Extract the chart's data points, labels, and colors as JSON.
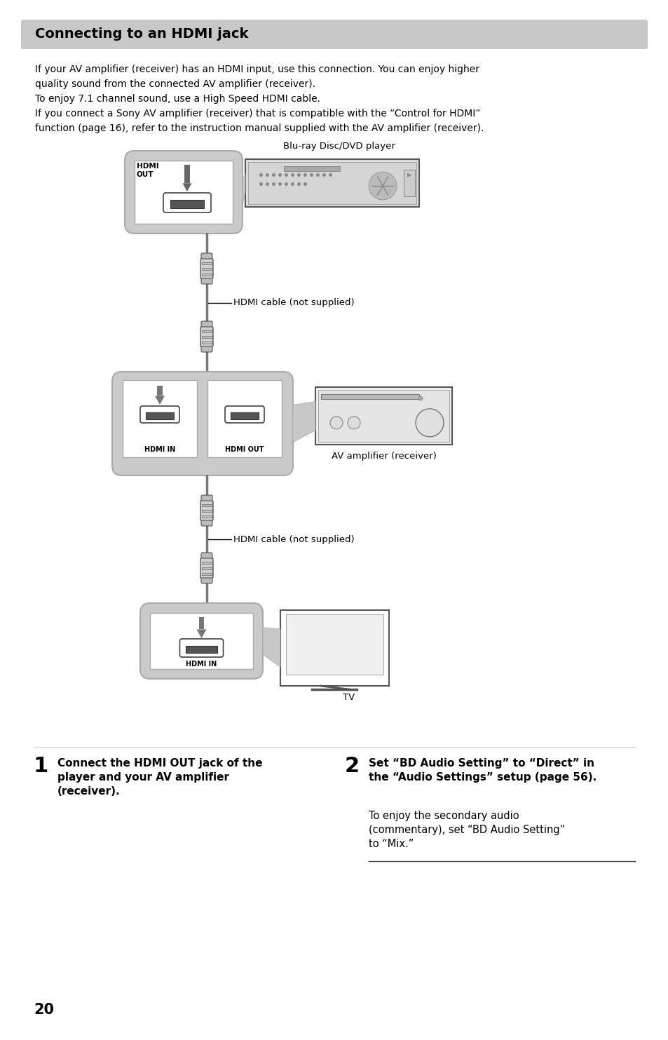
{
  "title": "Connecting to an HDMI jack",
  "title_bg": "#c8c8c8",
  "page_bg": "#ffffff",
  "page_number": "20",
  "body_text_lines": [
    "If your AV amplifier (receiver) has an HDMI input, use this connection. You can enjoy higher",
    "quality sound from the connected AV amplifier (receiver).",
    "To enjoy 7.1 channel sound, use a High Speed HDMI cable.",
    "If you connect a Sony AV amplifier (receiver) that is compatible with the “Control for HDMI”",
    "function (page 16), refer to the instruction manual supplied with the AV amplifier (receiver)."
  ],
  "label_blu_ray": "Blu-ray Disc/DVD player",
  "label_hdmi_cable_1": "HDMI cable (not supplied)",
  "label_av_amplifier": "AV amplifier (receiver)",
  "label_hdmi_cable_2": "HDMI cable (not supplied)",
  "label_tv": "TV",
  "step1_num": "1",
  "step1_bold": "Connect the HDMI OUT jack of the\nplayer and your AV amplifier\n(receiver).",
  "step2_num": "2",
  "step2_bold": "Set “BD Audio Setting” to “Direct” in\nthe “Audio Settings” setup (page 56).",
  "step2_normal": "To enjoy the secondary audio\n(commentary), set “BD Audio Setting”\nto “Mix.”",
  "box_color": "#c8c8c8",
  "box_inner": "#ffffff",
  "arrow_color": "#808080",
  "connector_color": "#888888",
  "line_color": "#000000"
}
